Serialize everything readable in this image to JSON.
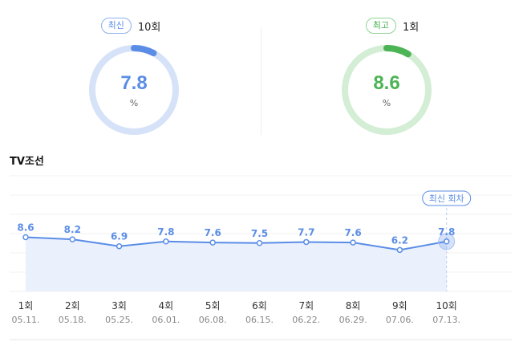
{
  "latest": {
    "badge": "최신",
    "count": "10회",
    "value": "7.8",
    "unit": "%",
    "fraction": 0.078,
    "color": "#5b8de6",
    "track": "#d6e2f8"
  },
  "best": {
    "badge": "최고",
    "count": "1회",
    "value": "8.6",
    "unit": "%",
    "fraction": 0.086,
    "color": "#4bb455",
    "track": "#d3eed5"
  },
  "channel": "TV조선",
  "chart_data": {
    "type": "line",
    "x": [
      "1회",
      "2회",
      "3회",
      "4회",
      "5회",
      "6회",
      "7회",
      "8회",
      "9회",
      "10회"
    ],
    "dates": [
      "05.11.",
      "05.18.",
      "05.25.",
      "06.01.",
      "06.08.",
      "06.15.",
      "06.22.",
      "06.29.",
      "07.06.",
      "07.13."
    ],
    "values": [
      8.6,
      8.2,
      6.9,
      7.8,
      7.6,
      7.5,
      7.7,
      7.6,
      6.2,
      7.8
    ],
    "annotation": "최신 회차",
    "line_color": "#5b8de6",
    "fill_color": "#eaf1fd",
    "grid": true
  }
}
